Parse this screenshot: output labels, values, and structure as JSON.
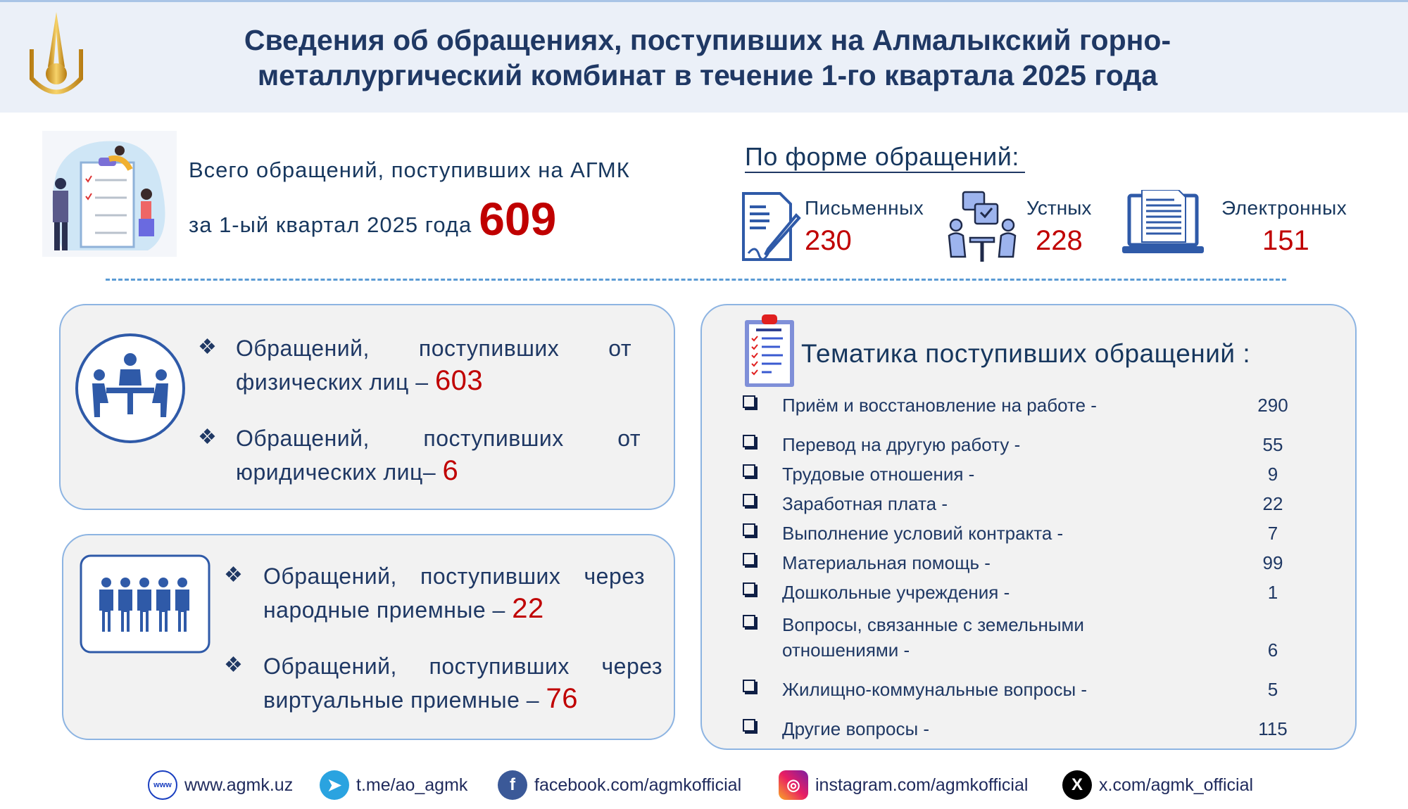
{
  "header": {
    "title_line1": "Сведения об обращениях, поступивших на Алмалыкский горно-",
    "title_line2": "металлургический комбинат в течение 1-го квартала 2025 года",
    "logo_icon": "agmk-gold-logo"
  },
  "total": {
    "line1": "Всего  обращений,  поступивших  на  АГМК",
    "line2": "за 1-ый квартал 2025 года",
    "value": "609"
  },
  "by_form": {
    "title": "По форме обращений:",
    "items": [
      {
        "label": "Письменных",
        "value": "230",
        "icon": "document-pen-icon"
      },
      {
        "label": "Устных",
        "value": "228",
        "icon": "meeting-dialog-icon"
      },
      {
        "label": "Электронных",
        "value": "151",
        "icon": "laptop-document-icon"
      }
    ]
  },
  "by_person": {
    "bullet": "❖",
    "items": [
      {
        "line1": "Обращений,   поступивших   от",
        "line2": "физических лиц – ",
        "value": "603"
      },
      {
        "line1": "Обращений,   поступивших   от",
        "line2": "юридических лиц– ",
        "value": "6"
      }
    ]
  },
  "by_reception": {
    "items": [
      {
        "line1": "Обращений,  поступивших  через",
        "line2": "народные приемные – ",
        "value": "22"
      },
      {
        "line1": "Обращений,  поступивших  через",
        "line2": "виртуальные приемные – ",
        "value": "76"
      }
    ]
  },
  "topics": {
    "title": "Тематика поступивших обращений :",
    "items": [
      {
        "label": "Приём и восстановление на работе -",
        "value": "290"
      },
      {
        "label": "Перевод на другую работу -",
        "value": "55"
      },
      {
        "label": "Трудовые отношения -",
        "value": "9"
      },
      {
        "label": "Заработная плата -",
        "value": "22"
      },
      {
        "label": "Выполнение условий контракта -",
        "value": "7"
      },
      {
        "label": "Материальная помощь -",
        "value": "99"
      },
      {
        "label": "Дошкольные учреждения -",
        "value": "1"
      },
      {
        "label": "Вопросы, связанные с земельными",
        "label2": "отношениями -",
        "value": "6"
      },
      {
        "label": "Жилищно-коммунальные вопросы -",
        "value": "5"
      },
      {
        "label": "Другие вопросы -",
        "value": "115"
      }
    ]
  },
  "footer": [
    {
      "text": "www.agmk.uz",
      "icon": "globe-icon"
    },
    {
      "text": "t.me/ao_agmk",
      "icon": "telegram-icon"
    },
    {
      "text": "facebook.com/agmkofficial",
      "icon": "facebook-icon"
    },
    {
      "text": "instagram.com/agmkofficial",
      "icon": "instagram-icon"
    },
    {
      "text": "x.com/agmk_official",
      "icon": "x-icon"
    }
  ],
  "colors": {
    "accent_red": "#c00000",
    "text_blue": "#1f3864",
    "box_border": "#8db4e2"
  }
}
